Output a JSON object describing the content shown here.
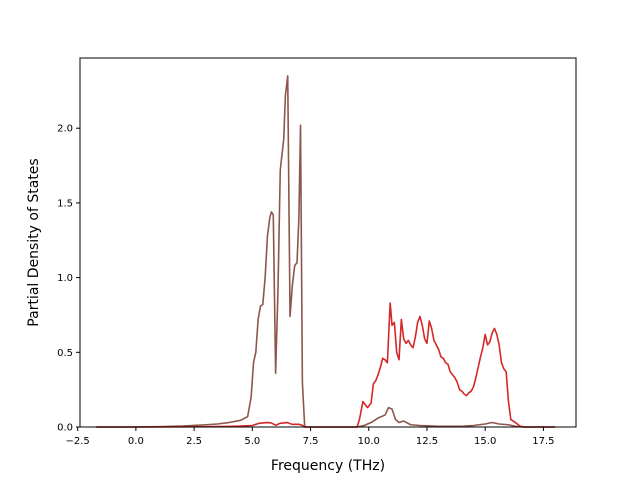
{
  "chart_data": {
    "type": "line",
    "title": "",
    "xlabel": "Frequency (THz)",
    "ylabel": "Partial Density of States",
    "xlim": [
      -2.4,
      18.9
    ],
    "ylim": [
      0,
      2.47
    ],
    "xticks": [
      -2.5,
      0.0,
      2.5,
      5.0,
      7.5,
      10.0,
      12.5,
      15.0,
      17.5
    ],
    "xtick_labels": [
      "−2.5",
      "0.0",
      "2.5",
      "5.0",
      "7.5",
      "10.0",
      "12.5",
      "15.0",
      "17.5"
    ],
    "yticks": [
      0.0,
      0.5,
      1.0,
      1.5,
      2.0
    ],
    "ytick_labels": [
      "0.0",
      "0.5",
      "1.0",
      "1.5",
      "2.0"
    ],
    "grid": false,
    "legend": "none",
    "series": [
      {
        "color": "#8c564b",
        "points": [
          [
            -1.7,
            0
          ],
          [
            -1,
            0
          ],
          [
            0,
            0
          ],
          [
            1,
            0.002
          ],
          [
            2,
            0.006
          ],
          [
            3,
            0.015
          ],
          [
            3.5,
            0.02
          ],
          [
            4,
            0.03
          ],
          [
            4.5,
            0.045
          ],
          [
            4.8,
            0.07
          ],
          [
            4.95,
            0.2
          ],
          [
            5.05,
            0.43
          ],
          [
            5.15,
            0.5
          ],
          [
            5.25,
            0.72
          ],
          [
            5.35,
            0.81
          ],
          [
            5.45,
            0.82
          ],
          [
            5.55,
            1.0
          ],
          [
            5.65,
            1.28
          ],
          [
            5.75,
            1.4
          ],
          [
            5.82,
            1.44
          ],
          [
            5.9,
            1.42
          ],
          [
            6.0,
            0.36
          ],
          [
            6.1,
            0.9
          ],
          [
            6.2,
            1.72
          ],
          [
            6.35,
            1.93
          ],
          [
            6.42,
            2.22
          ],
          [
            6.52,
            2.35
          ],
          [
            6.62,
            0.74
          ],
          [
            6.72,
            0.95
          ],
          [
            6.82,
            1.08
          ],
          [
            6.92,
            1.1
          ],
          [
            7.0,
            1.4
          ],
          [
            7.07,
            2.02
          ],
          [
            7.15,
            0.3
          ],
          [
            7.25,
            0
          ],
          [
            8,
            0
          ],
          [
            9,
            0
          ],
          [
            9.5,
            0
          ],
          [
            9.8,
            0.01
          ],
          [
            10.1,
            0.03
          ],
          [
            10.4,
            0.06
          ],
          [
            10.7,
            0.08
          ],
          [
            10.85,
            0.13
          ],
          [
            11.0,
            0.12
          ],
          [
            11.15,
            0.05
          ],
          [
            11.3,
            0.03
          ],
          [
            11.5,
            0.04
          ],
          [
            11.8,
            0.015
          ],
          [
            12.2,
            0.01
          ],
          [
            13,
            0.005
          ],
          [
            14,
            0.005
          ],
          [
            14.5,
            0.01
          ],
          [
            15,
            0.02
          ],
          [
            15.3,
            0.03
          ],
          [
            15.6,
            0.02
          ],
          [
            16,
            0.015
          ],
          [
            16.3,
            0.005
          ],
          [
            16.6,
            0
          ],
          [
            17.5,
            0
          ],
          [
            18,
            0
          ]
        ]
      },
      {
        "color": "#d62728",
        "points": [
          [
            -1.7,
            0
          ],
          [
            0,
            0
          ],
          [
            2,
            0.001
          ],
          [
            3,
            0.002
          ],
          [
            4,
            0.004
          ],
          [
            4.5,
            0.006
          ],
          [
            5.0,
            0.01
          ],
          [
            5.3,
            0.025
          ],
          [
            5.6,
            0.03
          ],
          [
            5.8,
            0.028
          ],
          [
            6.0,
            0.012
          ],
          [
            6.2,
            0.025
          ],
          [
            6.5,
            0.03
          ],
          [
            6.7,
            0.018
          ],
          [
            7.0,
            0.018
          ],
          [
            7.2,
            0.008
          ],
          [
            7.3,
            0
          ],
          [
            9,
            0
          ],
          [
            9.5,
            0
          ],
          [
            9.6,
            0.05
          ],
          [
            9.75,
            0.17
          ],
          [
            9.85,
            0.15
          ],
          [
            9.95,
            0.13
          ],
          [
            10.1,
            0.16
          ],
          [
            10.2,
            0.29
          ],
          [
            10.3,
            0.31
          ],
          [
            10.4,
            0.35
          ],
          [
            10.5,
            0.4
          ],
          [
            10.6,
            0.46
          ],
          [
            10.7,
            0.45
          ],
          [
            10.8,
            0.43
          ],
          [
            10.92,
            0.83
          ],
          [
            11.0,
            0.68
          ],
          [
            11.1,
            0.7
          ],
          [
            11.2,
            0.5
          ],
          [
            11.3,
            0.45
          ],
          [
            11.4,
            0.72
          ],
          [
            11.5,
            0.59
          ],
          [
            11.6,
            0.56
          ],
          [
            11.7,
            0.58
          ],
          [
            11.8,
            0.55
          ],
          [
            11.9,
            0.53
          ],
          [
            12.0,
            0.6
          ],
          [
            12.1,
            0.7
          ],
          [
            12.2,
            0.74
          ],
          [
            12.3,
            0.68
          ],
          [
            12.4,
            0.59
          ],
          [
            12.5,
            0.56
          ],
          [
            12.6,
            0.71
          ],
          [
            12.7,
            0.66
          ],
          [
            12.8,
            0.58
          ],
          [
            12.9,
            0.55
          ],
          [
            13.0,
            0.52
          ],
          [
            13.1,
            0.47
          ],
          [
            13.2,
            0.46
          ],
          [
            13.3,
            0.43
          ],
          [
            13.4,
            0.42
          ],
          [
            13.5,
            0.37
          ],
          [
            13.6,
            0.35
          ],
          [
            13.7,
            0.33
          ],
          [
            13.8,
            0.3
          ],
          [
            13.9,
            0.25
          ],
          [
            14.0,
            0.24
          ],
          [
            14.1,
            0.22
          ],
          [
            14.2,
            0.21
          ],
          [
            14.3,
            0.23
          ],
          [
            14.4,
            0.24
          ],
          [
            14.5,
            0.27
          ],
          [
            14.6,
            0.33
          ],
          [
            14.7,
            0.4
          ],
          [
            14.8,
            0.47
          ],
          [
            14.9,
            0.53
          ],
          [
            15.0,
            0.62
          ],
          [
            15.1,
            0.55
          ],
          [
            15.2,
            0.57
          ],
          [
            15.3,
            0.63
          ],
          [
            15.4,
            0.66
          ],
          [
            15.5,
            0.62
          ],
          [
            15.6,
            0.55
          ],
          [
            15.7,
            0.43
          ],
          [
            15.8,
            0.39
          ],
          [
            15.9,
            0.37
          ],
          [
            16.0,
            0.17
          ],
          [
            16.1,
            0.05
          ],
          [
            16.3,
            0.03
          ],
          [
            16.5,
            0.005
          ],
          [
            16.7,
            0
          ],
          [
            17.5,
            0
          ],
          [
            18,
            0
          ]
        ]
      }
    ]
  }
}
